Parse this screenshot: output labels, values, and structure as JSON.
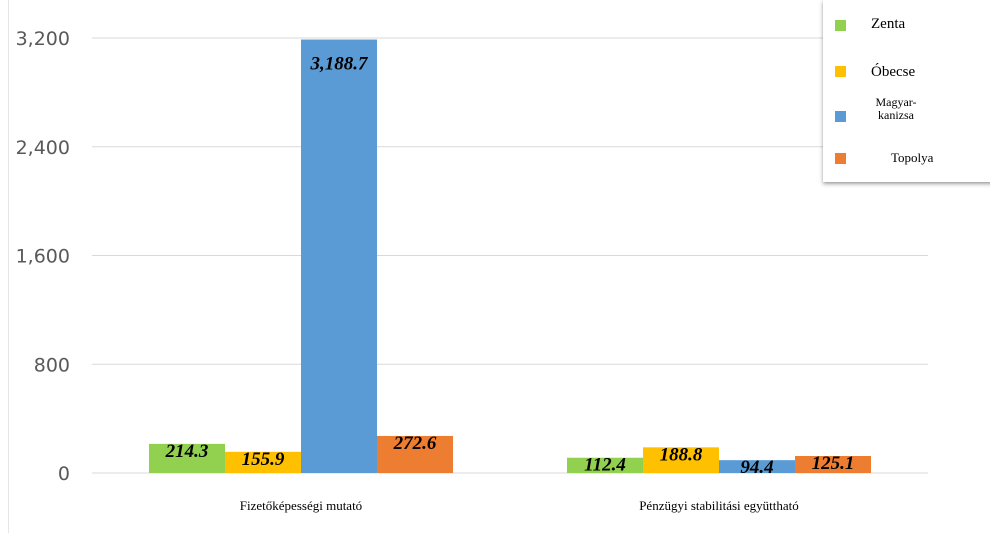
{
  "chart_data": {
    "type": "bar",
    "categories": [
      "Fizetőképességi mutató",
      "Pénzügyi stabilitási együttható"
    ],
    "series": [
      {
        "name": "Zenta",
        "color": "#92d050",
        "values": [
          214.3,
          112.4
        ],
        "labels": [
          "214.3",
          "112.4"
        ]
      },
      {
        "name": "Óbecse",
        "color": "#ffc000",
        "values": [
          155.9,
          188.8
        ],
        "labels": [
          "155.9",
          "188.8"
        ]
      },
      {
        "name": "Magyar-kanizsa",
        "color": "#5b9bd5",
        "values": [
          3188.7,
          94.4
        ],
        "labels": [
          "3,188.7",
          "94.4"
        ]
      },
      {
        "name": "Topolya",
        "color": "#ed7d31",
        "values": [
          272.6,
          125.1
        ],
        "labels": [
          "272.6",
          "125.1"
        ]
      }
    ],
    "yticks": [
      "0",
      "800",
      "1,600",
      "2,400",
      "3,200"
    ],
    "ylim": [
      0,
      3200
    ],
    "grid": true,
    "legend": "top-right"
  },
  "legend": {
    "items": [
      {
        "label": "Zenta"
      },
      {
        "label": "Óbecse"
      },
      {
        "label": "Magyar-kanizsa"
      },
      {
        "label": "Topolya"
      }
    ]
  }
}
